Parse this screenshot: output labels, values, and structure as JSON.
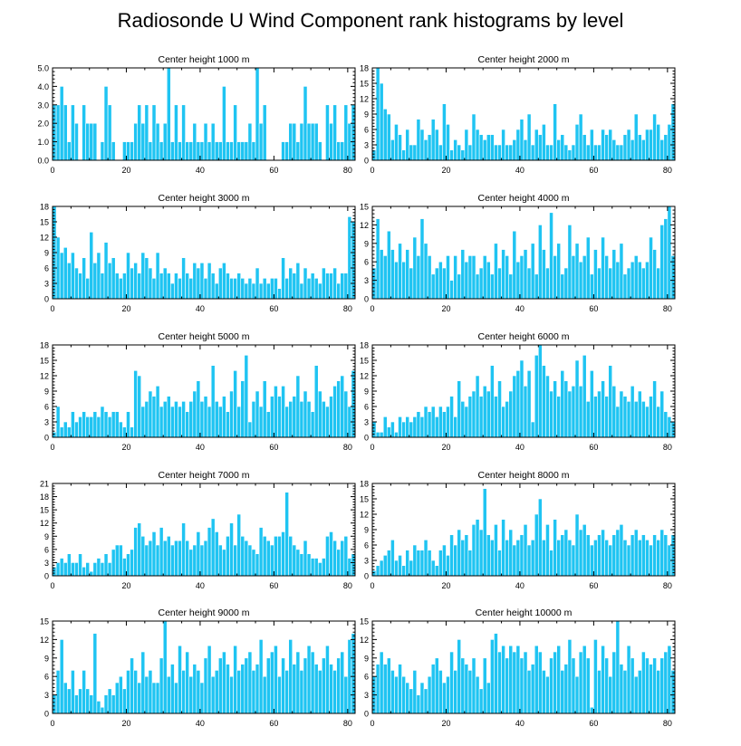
{
  "title": "Radiosonde U Wind Component rank histograms by level",
  "colors": {
    "bar": "#1fc4f2",
    "frame": "#000000"
  },
  "chart_data": [
    {
      "type": "bar",
      "title": "Center height 1000 m",
      "xlim": [
        0,
        82
      ],
      "ylim": [
        0,
        5
      ],
      "yticks": [
        0,
        1,
        2,
        3,
        4,
        5
      ],
      "ytick_labels": [
        "0.0",
        "1.0",
        "2.0",
        "3.0",
        "4.0",
        "5.0"
      ],
      "xticks": [
        0,
        20,
        40,
        60,
        80
      ],
      "xtick_labels": [
        "0",
        "20",
        "40",
        "60",
        "80"
      ],
      "values": [
        3,
        3,
        4,
        3,
        1,
        3,
        2,
        0,
        3,
        2,
        2,
        2,
        0,
        1,
        4,
        3,
        1,
        0,
        0,
        1,
        1,
        1,
        2,
        3,
        2,
        3,
        1,
        3,
        2,
        1,
        2,
        5,
        1,
        3,
        1,
        3,
        1,
        1,
        2,
        1,
        1,
        2,
        1,
        2,
        1,
        1,
        4,
        1,
        1,
        3,
        1,
        1,
        1,
        2,
        1,
        5,
        2,
        3,
        0,
        0,
        0,
        0,
        1,
        1,
        2,
        2,
        1,
        2,
        4,
        2,
        2,
        2,
        1,
        0,
        3,
        2,
        3,
        1,
        1,
        3,
        2,
        3
      ]
    },
    {
      "type": "bar",
      "title": "Center height 2000 m",
      "xlim": [
        0,
        82
      ],
      "ylim": [
        0,
        18
      ],
      "yticks": [
        0,
        3,
        6,
        9,
        12,
        15,
        18
      ],
      "ytick_labels": [
        "0",
        "3",
        "6",
        "9",
        "12",
        "15",
        "18"
      ],
      "xticks": [
        0,
        20,
        40,
        60,
        80
      ],
      "xtick_labels": [
        "0",
        "20",
        "40",
        "60",
        "80"
      ],
      "values": [
        2,
        18,
        15,
        10,
        9,
        4,
        7,
        5,
        2,
        6,
        3,
        3,
        8,
        6,
        4,
        5,
        8,
        6,
        3,
        11,
        7,
        2,
        4,
        3,
        2,
        6,
        3,
        9,
        6,
        5,
        4,
        5,
        5,
        3,
        3,
        6,
        3,
        3,
        4,
        6,
        8,
        4,
        9,
        3,
        6,
        5,
        7,
        3,
        3,
        11,
        4,
        5,
        3,
        2,
        3,
        7,
        9,
        5,
        3,
        6,
        3,
        3,
        6,
        5,
        6,
        4,
        3,
        3,
        5,
        6,
        4,
        9,
        5,
        4,
        6,
        6,
        9,
        7,
        4,
        5,
        7,
        11
      ]
    },
    {
      "type": "bar",
      "title": "Center height 3000 m",
      "xlim": [
        0,
        82
      ],
      "ylim": [
        0,
        18
      ],
      "yticks": [
        0,
        3,
        6,
        9,
        12,
        15,
        18
      ],
      "ytick_labels": [
        "0",
        "3",
        "6",
        "9",
        "12",
        "15",
        "18"
      ],
      "xticks": [
        0,
        20,
        40,
        60,
        80
      ],
      "xtick_labels": [
        "0",
        "20",
        "40",
        "60",
        "80"
      ],
      "values": [
        18,
        12,
        9,
        10,
        7,
        9,
        6,
        5,
        8,
        4,
        13,
        7,
        9,
        5,
        11,
        7,
        8,
        5,
        4,
        5,
        9,
        6,
        7,
        5,
        9,
        8,
        6,
        4,
        9,
        5,
        6,
        5,
        3,
        5,
        4,
        8,
        5,
        4,
        7,
        6,
        7,
        4,
        7,
        5,
        3,
        6,
        7,
        5,
        4,
        4,
        5,
        4,
        3,
        4,
        3,
        6,
        3,
        4,
        3,
        4,
        4,
        2,
        8,
        4,
        6,
        5,
        7,
        3,
        6,
        4,
        5,
        4,
        3,
        6,
        5,
        5,
        6,
        3,
        5,
        5,
        16,
        15
      ]
    },
    {
      "type": "bar",
      "title": "Center height 4000 m",
      "xlim": [
        0,
        82
      ],
      "ylim": [
        0,
        15
      ],
      "yticks": [
        0,
        3,
        6,
        9,
        12,
        15
      ],
      "ytick_labels": [
        "0",
        "3",
        "6",
        "9",
        "12",
        "15"
      ],
      "xticks": [
        0,
        20,
        40,
        60,
        80
      ],
      "xtick_labels": [
        "0",
        "20",
        "40",
        "60",
        "80"
      ],
      "values": [
        5,
        13,
        8,
        7,
        11,
        8,
        6,
        9,
        6,
        8,
        5,
        10,
        7,
        13,
        9,
        7,
        4,
        5,
        6,
        5,
        7,
        3,
        7,
        4,
        8,
        6,
        7,
        7,
        4,
        5,
        7,
        6,
        4,
        9,
        5,
        8,
        7,
        4,
        11,
        6,
        7,
        8,
        5,
        9,
        4,
        12,
        8,
        5,
        14,
        7,
        9,
        4,
        5,
        12,
        7,
        9,
        6,
        7,
        10,
        4,
        8,
        5,
        10,
        7,
        5,
        8,
        6,
        9,
        4,
        5,
        6,
        7,
        6,
        5,
        6,
        10,
        8,
        5,
        12,
        13,
        15,
        7
      ]
    },
    {
      "type": "bar",
      "title": "Center height 5000 m",
      "xlim": [
        0,
        82
      ],
      "ylim": [
        0,
        18
      ],
      "yticks": [
        0,
        3,
        6,
        9,
        12,
        15,
        18
      ],
      "ytick_labels": [
        "0",
        "3",
        "6",
        "9",
        "12",
        "15",
        "18"
      ],
      "xticks": [
        0,
        20,
        40,
        60,
        80
      ],
      "xtick_labels": [
        "0",
        "20",
        "40",
        "60",
        "80"
      ],
      "values": [
        1,
        6,
        2,
        3,
        2,
        5,
        3,
        4,
        5,
        4,
        4,
        5,
        4,
        6,
        5,
        4,
        5,
        5,
        3,
        2,
        5,
        2,
        13,
        12,
        6,
        7,
        9,
        8,
        10,
        6,
        7,
        8,
        6,
        7,
        6,
        7,
        5,
        7,
        9,
        11,
        7,
        8,
        6,
        14,
        7,
        6,
        8,
        5,
        9,
        13,
        6,
        11,
        16,
        3,
        7,
        9,
        6,
        11,
        5,
        8,
        10,
        8,
        10,
        6,
        7,
        8,
        12,
        7,
        9,
        7,
        5,
        14,
        9,
        7,
        6,
        8,
        10,
        11,
        12,
        9,
        6,
        13
      ]
    },
    {
      "type": "bar",
      "title": "Center height 6000 m",
      "xlim": [
        0,
        82
      ],
      "ylim": [
        0,
        18
      ],
      "yticks": [
        0,
        3,
        6,
        9,
        12,
        15,
        18
      ],
      "ytick_labels": [
        "0",
        "3",
        "6",
        "9",
        "12",
        "15",
        "18"
      ],
      "xticks": [
        0,
        20,
        40,
        60,
        80
      ],
      "xtick_labels": [
        "0",
        "20",
        "40",
        "60",
        "80"
      ],
      "values": [
        3,
        1,
        1,
        4,
        2,
        3,
        1,
        4,
        3,
        4,
        3,
        4,
        5,
        4,
        6,
        5,
        6,
        4,
        6,
        5,
        6,
        8,
        4,
        11,
        7,
        6,
        8,
        9,
        12,
        8,
        10,
        9,
        14,
        8,
        11,
        6,
        7,
        9,
        12,
        13,
        15,
        10,
        13,
        3,
        16,
        18,
        14,
        12,
        9,
        11,
        8,
        13,
        11,
        9,
        10,
        15,
        10,
        16,
        7,
        13,
        8,
        9,
        11,
        8,
        14,
        10,
        6,
        9,
        8,
        7,
        10,
        7,
        9,
        7,
        6,
        8,
        11,
        6,
        9,
        5,
        4,
        3
      ]
    },
    {
      "type": "bar",
      "title": "Center height 7000 m",
      "xlim": [
        0,
        82
      ],
      "ylim": [
        0,
        21
      ],
      "yticks": [
        0,
        3,
        6,
        9,
        12,
        15,
        18,
        21
      ],
      "ytick_labels": [
        "0",
        "3",
        "6",
        "9",
        "12",
        "15",
        "18",
        "21"
      ],
      "xticks": [
        0,
        20,
        40,
        60,
        80
      ],
      "xtick_labels": [
        "0",
        "20",
        "40",
        "60",
        "80"
      ],
      "values": [
        2,
        3,
        4,
        3,
        5,
        3,
        3,
        5,
        2,
        3,
        1,
        3,
        4,
        3,
        5,
        3,
        6,
        7,
        7,
        4,
        5,
        6,
        11,
        12,
        9,
        7,
        8,
        10,
        7,
        11,
        8,
        9,
        7,
        8,
        8,
        12,
        8,
        6,
        7,
        10,
        7,
        8,
        11,
        13,
        10,
        7,
        6,
        9,
        12,
        7,
        14,
        9,
        8,
        7,
        6,
        5,
        11,
        9,
        8,
        7,
        9,
        9,
        10,
        19,
        9,
        7,
        6,
        5,
        8,
        5,
        4,
        4,
        3,
        4,
        9,
        10,
        8,
        6,
        8,
        9,
        4,
        5
      ]
    },
    {
      "type": "bar",
      "title": "Center height 8000 m",
      "xlim": [
        0,
        82
      ],
      "ylim": [
        0,
        18
      ],
      "yticks": [
        0,
        3,
        6,
        9,
        12,
        15,
        18
      ],
      "ytick_labels": [
        "0",
        "3",
        "6",
        "9",
        "12",
        "15",
        "18"
      ],
      "xticks": [
        0,
        20,
        40,
        60,
        80
      ],
      "xtick_labels": [
        "0",
        "20",
        "40",
        "60",
        "80"
      ],
      "values": [
        1,
        2,
        3,
        4,
        5,
        7,
        3,
        4,
        2,
        5,
        3,
        6,
        5,
        5,
        7,
        5,
        3,
        2,
        5,
        6,
        4,
        8,
        6,
        9,
        7,
        8,
        5,
        10,
        11,
        9,
        17,
        8,
        7,
        10,
        5,
        11,
        7,
        9,
        6,
        7,
        8,
        10,
        6,
        7,
        12,
        15,
        7,
        10,
        5,
        11,
        7,
        8,
        9,
        7,
        6,
        12,
        9,
        10,
        8,
        6,
        7,
        8,
        9,
        7,
        6,
        8,
        9,
        10,
        7,
        6,
        8,
        9,
        7,
        8,
        7,
        6,
        8,
        7,
        9,
        8,
        6,
        8
      ]
    },
    {
      "type": "bar",
      "title": "Center height 9000 m",
      "xlim": [
        0,
        82
      ],
      "ylim": [
        0,
        15
      ],
      "yticks": [
        0,
        3,
        6,
        9,
        12,
        15
      ],
      "ytick_labels": [
        "0",
        "3",
        "6",
        "9",
        "12",
        "15"
      ],
      "xticks": [
        0,
        20,
        40,
        60,
        80
      ],
      "xtick_labels": [
        "0",
        "20",
        "40",
        "60",
        "80"
      ],
      "values": [
        3,
        7,
        12,
        5,
        4,
        7,
        3,
        4,
        7,
        4,
        3,
        13,
        2,
        1,
        3,
        4,
        3,
        5,
        6,
        4,
        7,
        9,
        7,
        5,
        10,
        6,
        7,
        5,
        5,
        9,
        15,
        6,
        8,
        5,
        11,
        7,
        10,
        6,
        8,
        7,
        5,
        9,
        11,
        6,
        7,
        9,
        10,
        8,
        6,
        11,
        7,
        8,
        9,
        10,
        7,
        8,
        12,
        6,
        9,
        10,
        11,
        6,
        9,
        7,
        12,
        8,
        10,
        7,
        9,
        11,
        10,
        8,
        7,
        9,
        11,
        8,
        7,
        9,
        10,
        6,
        12,
        13
      ]
    },
    {
      "type": "bar",
      "title": "Center height 10000 m",
      "xlim": [
        0,
        82
      ],
      "ylim": [
        0,
        15
      ],
      "yticks": [
        0,
        3,
        6,
        9,
        12,
        15
      ],
      "ytick_labels": [
        "0",
        "3",
        "6",
        "9",
        "12",
        "15"
      ],
      "xticks": [
        0,
        20,
        40,
        60,
        80
      ],
      "xtick_labels": [
        "0",
        "20",
        "40",
        "60",
        "80"
      ],
      "values": [
        6,
        8,
        10,
        8,
        9,
        7,
        6,
        8,
        6,
        5,
        4,
        7,
        3,
        5,
        4,
        6,
        8,
        9,
        7,
        5,
        6,
        10,
        7,
        12,
        9,
        8,
        7,
        9,
        6,
        4,
        9,
        5,
        12,
        13,
        10,
        11,
        9,
        11,
        10,
        11,
        9,
        10,
        7,
        8,
        11,
        10,
        7,
        6,
        9,
        10,
        11,
        7,
        8,
        12,
        9,
        6,
        10,
        11,
        9,
        1,
        12,
        7,
        11,
        9,
        6,
        10,
        15,
        8,
        7,
        11,
        9,
        6,
        7,
        10,
        9,
        8,
        9,
        7,
        9,
        10,
        11,
        7
      ]
    }
  ]
}
